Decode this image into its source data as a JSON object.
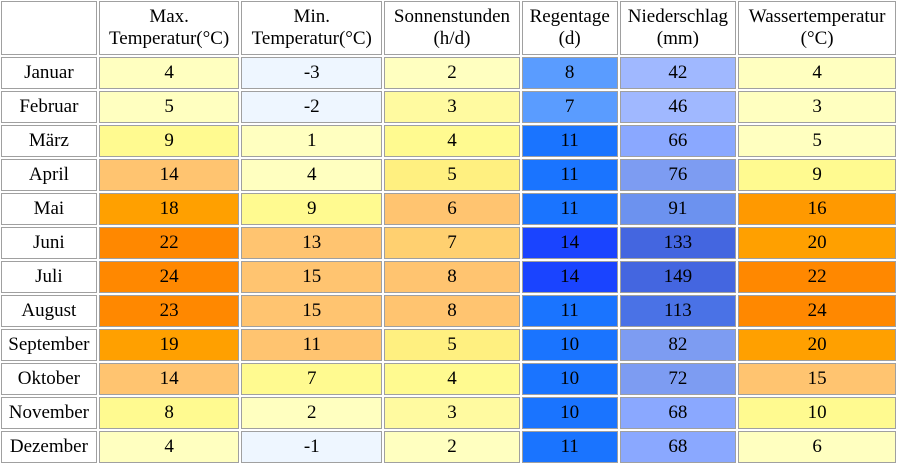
{
  "headers": [
    {
      "line1": "Max.",
      "line2": "Temperatur(°C)"
    },
    {
      "line1": "Min.",
      "line2": "Temperatur(°C)"
    },
    {
      "line1": "Sonnenstunden",
      "line2": "(h/d)"
    },
    {
      "line1": "Regentage",
      "line2": "(d)"
    },
    {
      "line1": "Niederschlag",
      "line2": "(mm)"
    },
    {
      "line1": "Wassertemperatur",
      "line2": "(°C)"
    }
  ],
  "rows": [
    {
      "month": "Januar",
      "values": [
        "4",
        "-3",
        "2",
        "8",
        "42",
        "4"
      ],
      "colors": [
        "#ffffc0",
        "#eef6ff",
        "#ffffc0",
        "#5a9cff",
        "#a0b8ff",
        "#ffffc0"
      ]
    },
    {
      "month": "Februar",
      "values": [
        "5",
        "-2",
        "3",
        "7",
        "46",
        "3"
      ],
      "colors": [
        "#ffffc0",
        "#eef6ff",
        "#fffaa0",
        "#5a9cff",
        "#a0b8ff",
        "#ffffc0"
      ]
    },
    {
      "month": "März",
      "values": [
        "9",
        "1",
        "4",
        "11",
        "66",
        "5"
      ],
      "colors": [
        "#fffa90",
        "#ffffc0",
        "#fffa90",
        "#1a74ff",
        "#8aa8ff",
        "#ffffc0"
      ]
    },
    {
      "month": "April",
      "values": [
        "14",
        "4",
        "5",
        "11",
        "76",
        "9"
      ],
      "colors": [
        "#ffc470",
        "#ffffc0",
        "#fff080",
        "#1a74ff",
        "#7d9cf2",
        "#fffa90"
      ]
    },
    {
      "month": "Mai",
      "values": [
        "18",
        "9",
        "6",
        "11",
        "91",
        "16"
      ],
      "colors": [
        "#ffa000",
        "#fffa90",
        "#ffc470",
        "#1a74ff",
        "#6c92ef",
        "#ff9900"
      ]
    },
    {
      "month": "Juni",
      "values": [
        "22",
        "13",
        "7",
        "14",
        "133",
        "20"
      ],
      "colors": [
        "#ff8800",
        "#ffc470",
        "#ffd070",
        "#1a44ff",
        "#4466e0",
        "#ffa000"
      ]
    },
    {
      "month": "Juli",
      "values": [
        "24",
        "15",
        "8",
        "14",
        "149",
        "22"
      ],
      "colors": [
        "#ff8800",
        "#ffc470",
        "#ffc470",
        "#1a44ff",
        "#4466e0",
        "#ff8800"
      ]
    },
    {
      "month": "August",
      "values": [
        "23",
        "15",
        "8",
        "11",
        "113",
        "24"
      ],
      "colors": [
        "#ff8800",
        "#ffc470",
        "#ffc470",
        "#1a74ff",
        "#4a72e6",
        "#ff8800"
      ]
    },
    {
      "month": "September",
      "values": [
        "19",
        "11",
        "5",
        "10",
        "82",
        "20"
      ],
      "colors": [
        "#ffa000",
        "#ffc470",
        "#fff080",
        "#1a74ff",
        "#7d9cf2",
        "#ffa000"
      ]
    },
    {
      "month": "Oktober",
      "values": [
        "14",
        "7",
        "4",
        "10",
        "72",
        "15"
      ],
      "colors": [
        "#ffc470",
        "#fffa90",
        "#fffa90",
        "#1a74ff",
        "#7d9cf2",
        "#ffc470"
      ]
    },
    {
      "month": "November",
      "values": [
        "8",
        "2",
        "3",
        "10",
        "68",
        "10"
      ],
      "colors": [
        "#fffa90",
        "#ffffc0",
        "#fffaa0",
        "#1a74ff",
        "#8aa8ff",
        "#fffa90"
      ]
    },
    {
      "month": "Dezember",
      "values": [
        "4",
        "-1",
        "2",
        "11",
        "68",
        "6"
      ],
      "colors": [
        "#ffffc0",
        "#eef6ff",
        "#ffffc0",
        "#1a74ff",
        "#8aa8ff",
        "#ffffc0"
      ]
    }
  ]
}
